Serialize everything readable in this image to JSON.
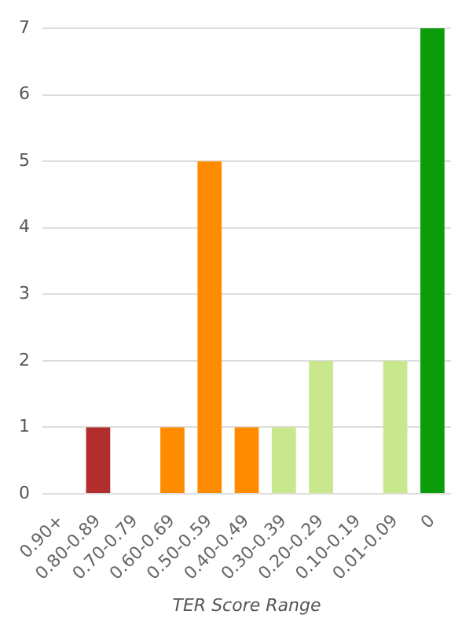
{
  "chart_data": {
    "type": "bar",
    "xlabel": "TER Score Range",
    "categories": [
      "0.90+",
      "0.80-0.89",
      "0.70-0.79",
      "0.60-0.69",
      "0.50-0.59",
      "0.40-0.49",
      "0.30-0.39",
      "0.20-0.29",
      "0.10-0.19",
      "0.01-0.09",
      "0"
    ],
    "values": [
      0,
      1,
      0,
      1,
      5,
      1,
      1,
      2,
      0,
      2,
      7
    ],
    "colors": [
      "#b22d2d",
      "#b22d2d",
      "#ff8c00",
      "#ff8c00",
      "#ff8c00",
      "#ff8c00",
      "#c9e88d",
      "#c9e88d",
      "#c9e88d",
      "#c9e88d",
      "#0b9b0b"
    ],
    "ylim": [
      0,
      7
    ],
    "yticks": [
      0,
      1,
      2,
      3,
      4,
      5,
      6,
      7
    ],
    "grid": "y"
  }
}
